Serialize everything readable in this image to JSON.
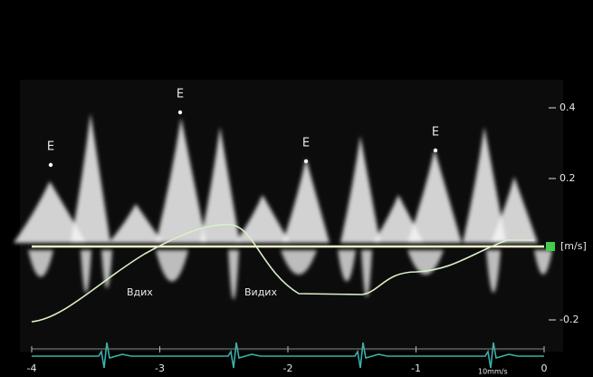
{
  "x_axis": {
    "ticks": [
      -4,
      -3,
      -2,
      -1,
      0
    ],
    "speed": "10mm/s"
  },
  "y_axis": {
    "ticks": [
      0.4,
      0.2,
      -0.2
    ],
    "unit": "[m/s]"
  },
  "annotations": {
    "peaks": [
      "E",
      "E",
      "E",
      "E"
    ],
    "inhale": "Вдих",
    "exhale": "Видих"
  }
}
